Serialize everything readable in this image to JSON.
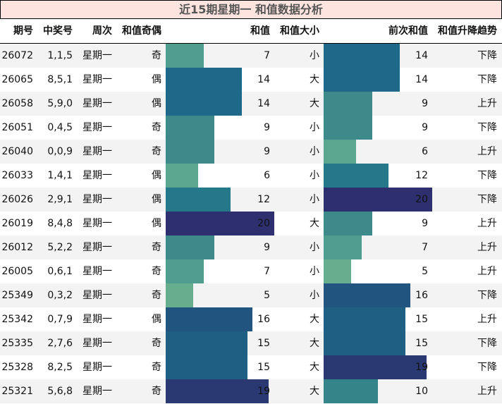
{
  "title": "近15期星期一 和值数据分析",
  "headers": [
    "期号",
    "中奖号",
    "周次",
    "和值奇偶",
    "和值",
    "和值大小",
    "前次和值",
    "和值升降趋势"
  ],
  "chart_data": {
    "type": "table",
    "bar_scale_max": 20,
    "color_scale": [
      "#66ae8e",
      "#2e2f6e"
    ],
    "rows": [
      {
        "issue": "26072",
        "numbers": "1,1,5",
        "weekday": "星期一",
        "parity": "奇",
        "sum": 7,
        "size": "小",
        "prev_sum": 14,
        "trend": "下降"
      },
      {
        "issue": "26065",
        "numbers": "8,5,1",
        "weekday": "星期一",
        "parity": "偶",
        "sum": 14,
        "size": "大",
        "prev_sum": 14,
        "trend": "下降"
      },
      {
        "issue": "26058",
        "numbers": "5,9,0",
        "weekday": "星期一",
        "parity": "偶",
        "sum": 14,
        "size": "大",
        "prev_sum": 9,
        "trend": "上升"
      },
      {
        "issue": "26051",
        "numbers": "0,4,5",
        "weekday": "星期一",
        "parity": "奇",
        "sum": 9,
        "size": "小",
        "prev_sum": 9,
        "trend": "下降"
      },
      {
        "issue": "26040",
        "numbers": "0,0,9",
        "weekday": "星期一",
        "parity": "奇",
        "sum": 9,
        "size": "小",
        "prev_sum": 6,
        "trend": "上升"
      },
      {
        "issue": "26033",
        "numbers": "1,4,1",
        "weekday": "星期一",
        "parity": "偶",
        "sum": 6,
        "size": "小",
        "prev_sum": 12,
        "trend": "下降"
      },
      {
        "issue": "26026",
        "numbers": "2,9,1",
        "weekday": "星期一",
        "parity": "偶",
        "sum": 12,
        "size": "小",
        "prev_sum": 20,
        "trend": "下降"
      },
      {
        "issue": "26019",
        "numbers": "8,4,8",
        "weekday": "星期一",
        "parity": "偶",
        "sum": 20,
        "size": "大",
        "prev_sum": 9,
        "trend": "上升"
      },
      {
        "issue": "26012",
        "numbers": "5,2,2",
        "weekday": "星期一",
        "parity": "奇",
        "sum": 9,
        "size": "小",
        "prev_sum": 7,
        "trend": "上升"
      },
      {
        "issue": "26005",
        "numbers": "0,6,1",
        "weekday": "星期一",
        "parity": "奇",
        "sum": 7,
        "size": "小",
        "prev_sum": 5,
        "trend": "上升"
      },
      {
        "issue": "25349",
        "numbers": "0,3,2",
        "weekday": "星期一",
        "parity": "奇",
        "sum": 5,
        "size": "小",
        "prev_sum": 16,
        "trend": "下降"
      },
      {
        "issue": "25342",
        "numbers": "0,7,9",
        "weekday": "星期一",
        "parity": "偶",
        "sum": 16,
        "size": "大",
        "prev_sum": 15,
        "trend": "上升"
      },
      {
        "issue": "25335",
        "numbers": "2,7,6",
        "weekday": "星期一",
        "parity": "奇",
        "sum": 15,
        "size": "大",
        "prev_sum": 15,
        "trend": "下降"
      },
      {
        "issue": "25328",
        "numbers": "8,2,5",
        "weekday": "星期一",
        "parity": "奇",
        "sum": 15,
        "size": "大",
        "prev_sum": 19,
        "trend": "下降"
      },
      {
        "issue": "25321",
        "numbers": "5,6,8",
        "weekday": "星期一",
        "parity": "奇",
        "sum": 19,
        "size": "大",
        "prev_sum": 10,
        "trend": "上升"
      }
    ]
  }
}
